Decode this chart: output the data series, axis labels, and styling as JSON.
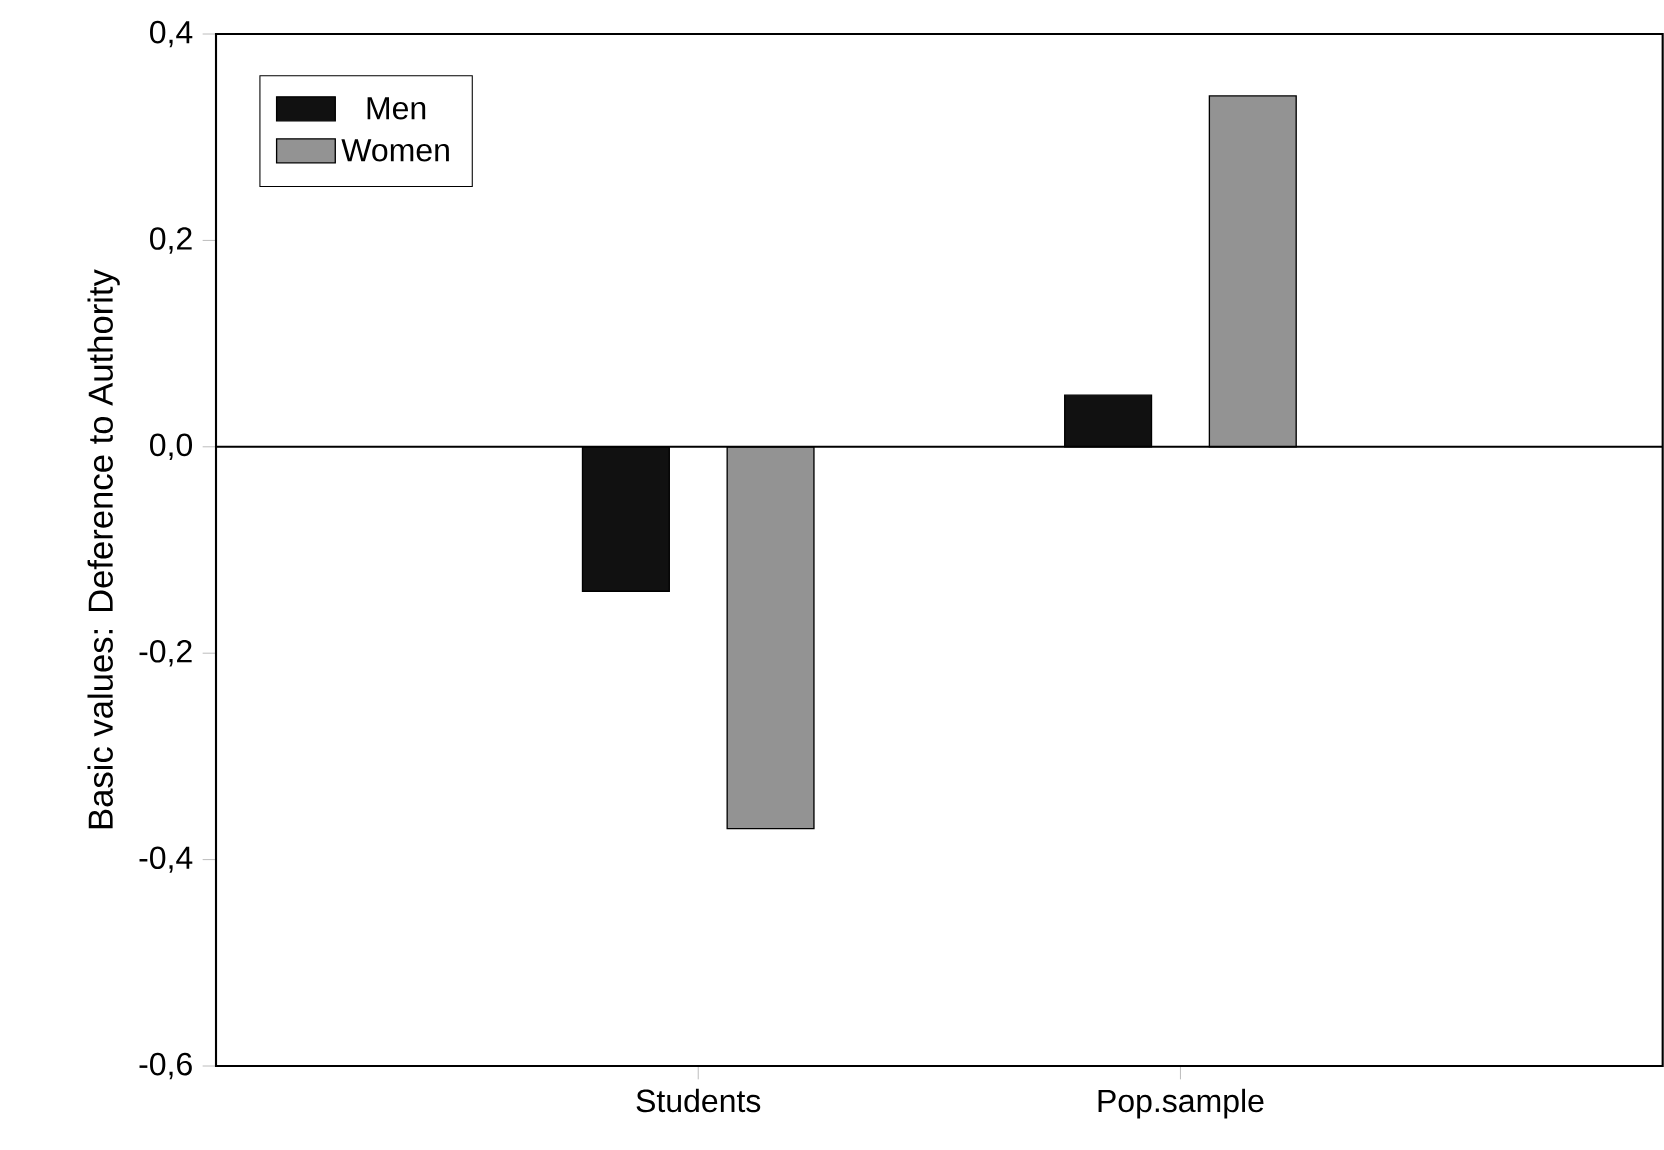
{
  "chart_data": {
    "type": "bar",
    "ylabel": "Basic values: Deference to Authority",
    "categories": [
      "Students",
      "Pop.sample"
    ],
    "series": [
      {
        "name": "Men",
        "color": "#111111",
        "values": [
          -0.14,
          0.05
        ]
      },
      {
        "name": "Women",
        "color": "#939393",
        "values": [
          -0.37,
          0.34
        ]
      }
    ],
    "ylim": [
      -0.6,
      0.4
    ],
    "yticks": [
      {
        "value": -0.6,
        "label": "-0,6"
      },
      {
        "value": -0.4,
        "label": "-0,4"
      },
      {
        "value": -0.2,
        "label": "-0,2"
      },
      {
        "value": 0.0,
        "label": "0,0"
      },
      {
        "value": 0.2,
        "label": "0,2"
      },
      {
        "value": 0.4,
        "label": "0,4"
      }
    ],
    "ref_lines": [
      {
        "axis": "y",
        "value": 0
      }
    ],
    "grid": false,
    "legend": "top left"
  }
}
